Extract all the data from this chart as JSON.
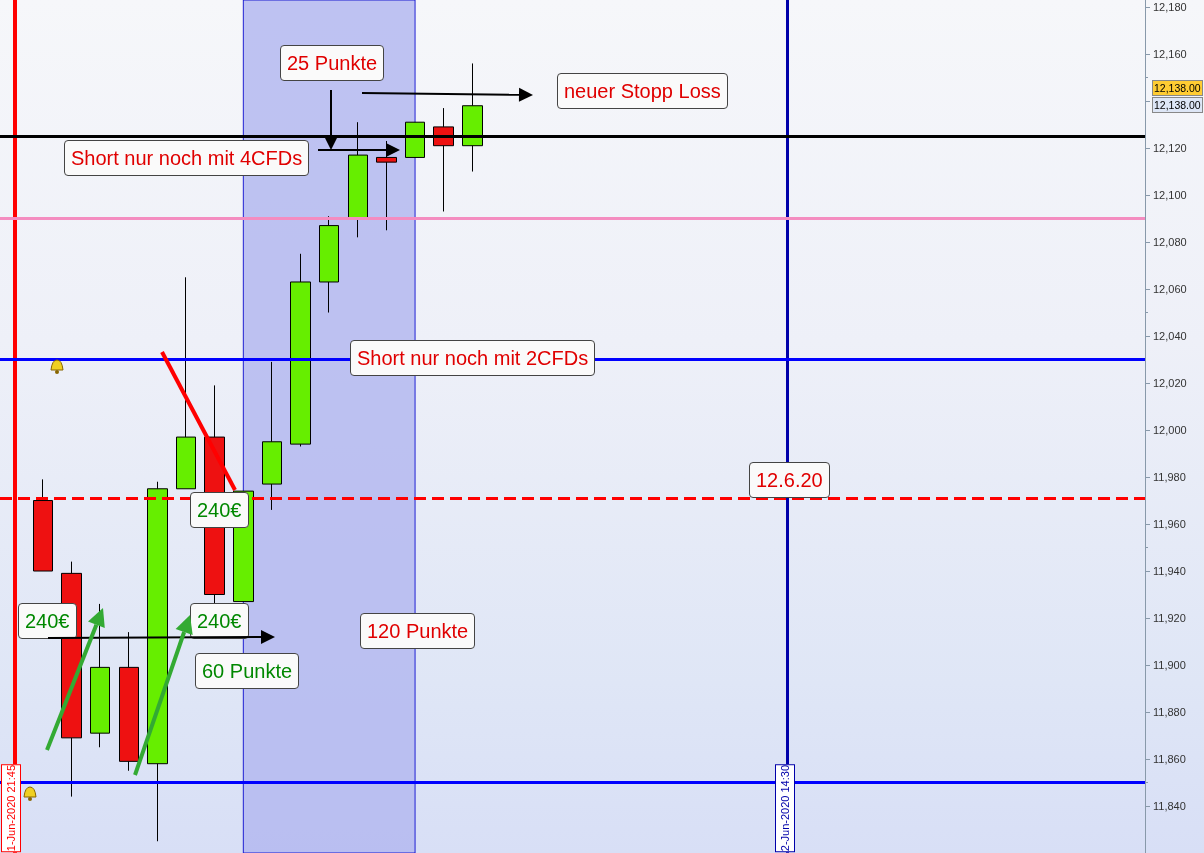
{
  "chart_data": {
    "type": "candlestick",
    "categories": [
      null,
      null,
      null,
      null,
      null,
      null,
      null,
      null,
      null,
      null,
      null,
      null,
      null,
      null,
      null,
      null,
      null,
      null,
      null,
      null,
      null,
      null,
      null,
      null,
      null,
      null,
      null,
      null,
      null,
      null,
      null,
      null,
      null,
      null,
      null,
      null,
      null,
      null,
      null,
      null
    ],
    "ohlc": [
      null,
      [
        11970,
        11979,
        11940,
        11940
      ],
      [
        11939,
        11944,
        11844,
        11869
      ],
      [
        11871,
        11926,
        11865,
        11899
      ],
      [
        11899,
        11914,
        11855,
        11859
      ],
      [
        11858,
        11978,
        11825,
        11975
      ],
      [
        11975,
        12065,
        11975,
        11997
      ],
      [
        11997,
        12019,
        11926,
        11930
      ],
      [
        11927,
        11974,
        11927,
        11974
      ],
      [
        11977,
        12029,
        11966,
        11995
      ],
      [
        11994,
        12075,
        11993,
        12063
      ],
      [
        12063,
        12091,
        12050,
        12087
      ],
      [
        12090,
        12131,
        12082,
        12117
      ],
      [
        12116,
        12123,
        12085,
        12114
      ],
      [
        12116,
        12131,
        12116,
        12131
      ],
      [
        12129,
        12137,
        12093,
        12121
      ],
      [
        12121,
        12156,
        12110,
        12138
      ],
      null,
      null,
      null,
      null,
      null,
      null,
      null,
      null,
      null,
      null,
      null,
      null,
      null,
      null,
      null,
      null,
      null,
      null,
      null,
      null,
      null,
      null,
      null
    ],
    "colors": [
      null,
      "#ee1111",
      "#ee1111",
      "#66ee00",
      "#ee1111",
      "#66ee00",
      "#66ee00",
      "#ee1111",
      "#66ee00",
      "#66ee00",
      "#66ee00",
      "#66ee00",
      "#66ee00",
      "#ee1111",
      "#66ee00",
      "#ee1111",
      "#66ee00",
      null,
      null,
      null,
      null,
      null,
      null,
      null,
      null,
      null,
      null,
      null,
      null,
      null,
      null,
      null,
      null,
      null,
      null,
      null,
      null,
      null,
      null,
      null
    ],
    "ylim": [
      11820,
      12183
    ],
    "yticks": [
      {
        "value": 11840,
        "label": "11,840"
      },
      {
        "value": 11860,
        "label": "11,860"
      },
      {
        "value": 11880,
        "label": "11,880"
      },
      {
        "value": 11900,
        "label": "11,900"
      },
      {
        "value": 11920,
        "label": "11,920"
      },
      {
        "value": 11940,
        "label": "11,940"
      },
      {
        "value": 11960,
        "label": "11,960"
      },
      {
        "value": 11980,
        "label": "11,980"
      },
      {
        "value": 12000,
        "label": "12,000"
      },
      {
        "value": 12020,
        "label": "12,020"
      },
      {
        "value": 12040,
        "label": "12,040"
      },
      {
        "value": 12060,
        "label": "12,060"
      },
      {
        "value": 12080,
        "label": "12,080"
      },
      {
        "value": 12100,
        "label": "12,100"
      },
      {
        "value": 12120,
        "label": "12,120"
      },
      {
        "value": 12140,
        "label": null
      },
      {
        "value": 12160,
        "label": "12,160"
      },
      {
        "value": 12180,
        "label": "12,180"
      }
    ],
    "tick_labels": "y",
    "grid": false,
    "ref_lines": [
      {
        "axis": "y",
        "value": 12125,
        "label": null,
        "color": "#000000",
        "line_style": "solid"
      },
      {
        "axis": "y",
        "value": 12090,
        "label": null,
        "color": "#f48cc0",
        "line_style": "solid"
      },
      {
        "axis": "y",
        "value": 12030,
        "label": null,
        "color": "#0000ff",
        "line_style": "solid"
      },
      {
        "axis": "y",
        "value": 11971,
        "label": null,
        "color": "#ff0000",
        "line_style": "dashed"
      },
      {
        "axis": "y",
        "value": 11850,
        "label": null,
        "color": "#0000ff",
        "line_style": "solid"
      }
    ],
    "annotations": [
      "25 Punkte",
      "neuer Stopp Loss",
      "Short nur noch mit 4CFDs",
      "Short nur noch mit 2CFDs",
      "12.6.20",
      "240€",
      "240€",
      "240€",
      "60 Punkte",
      "120 Punkte",
      "12,138.00",
      "12,138.00",
      "1-Jun-2020 21:45",
      "2-Jun-2020 14:30"
    ]
  }
}
